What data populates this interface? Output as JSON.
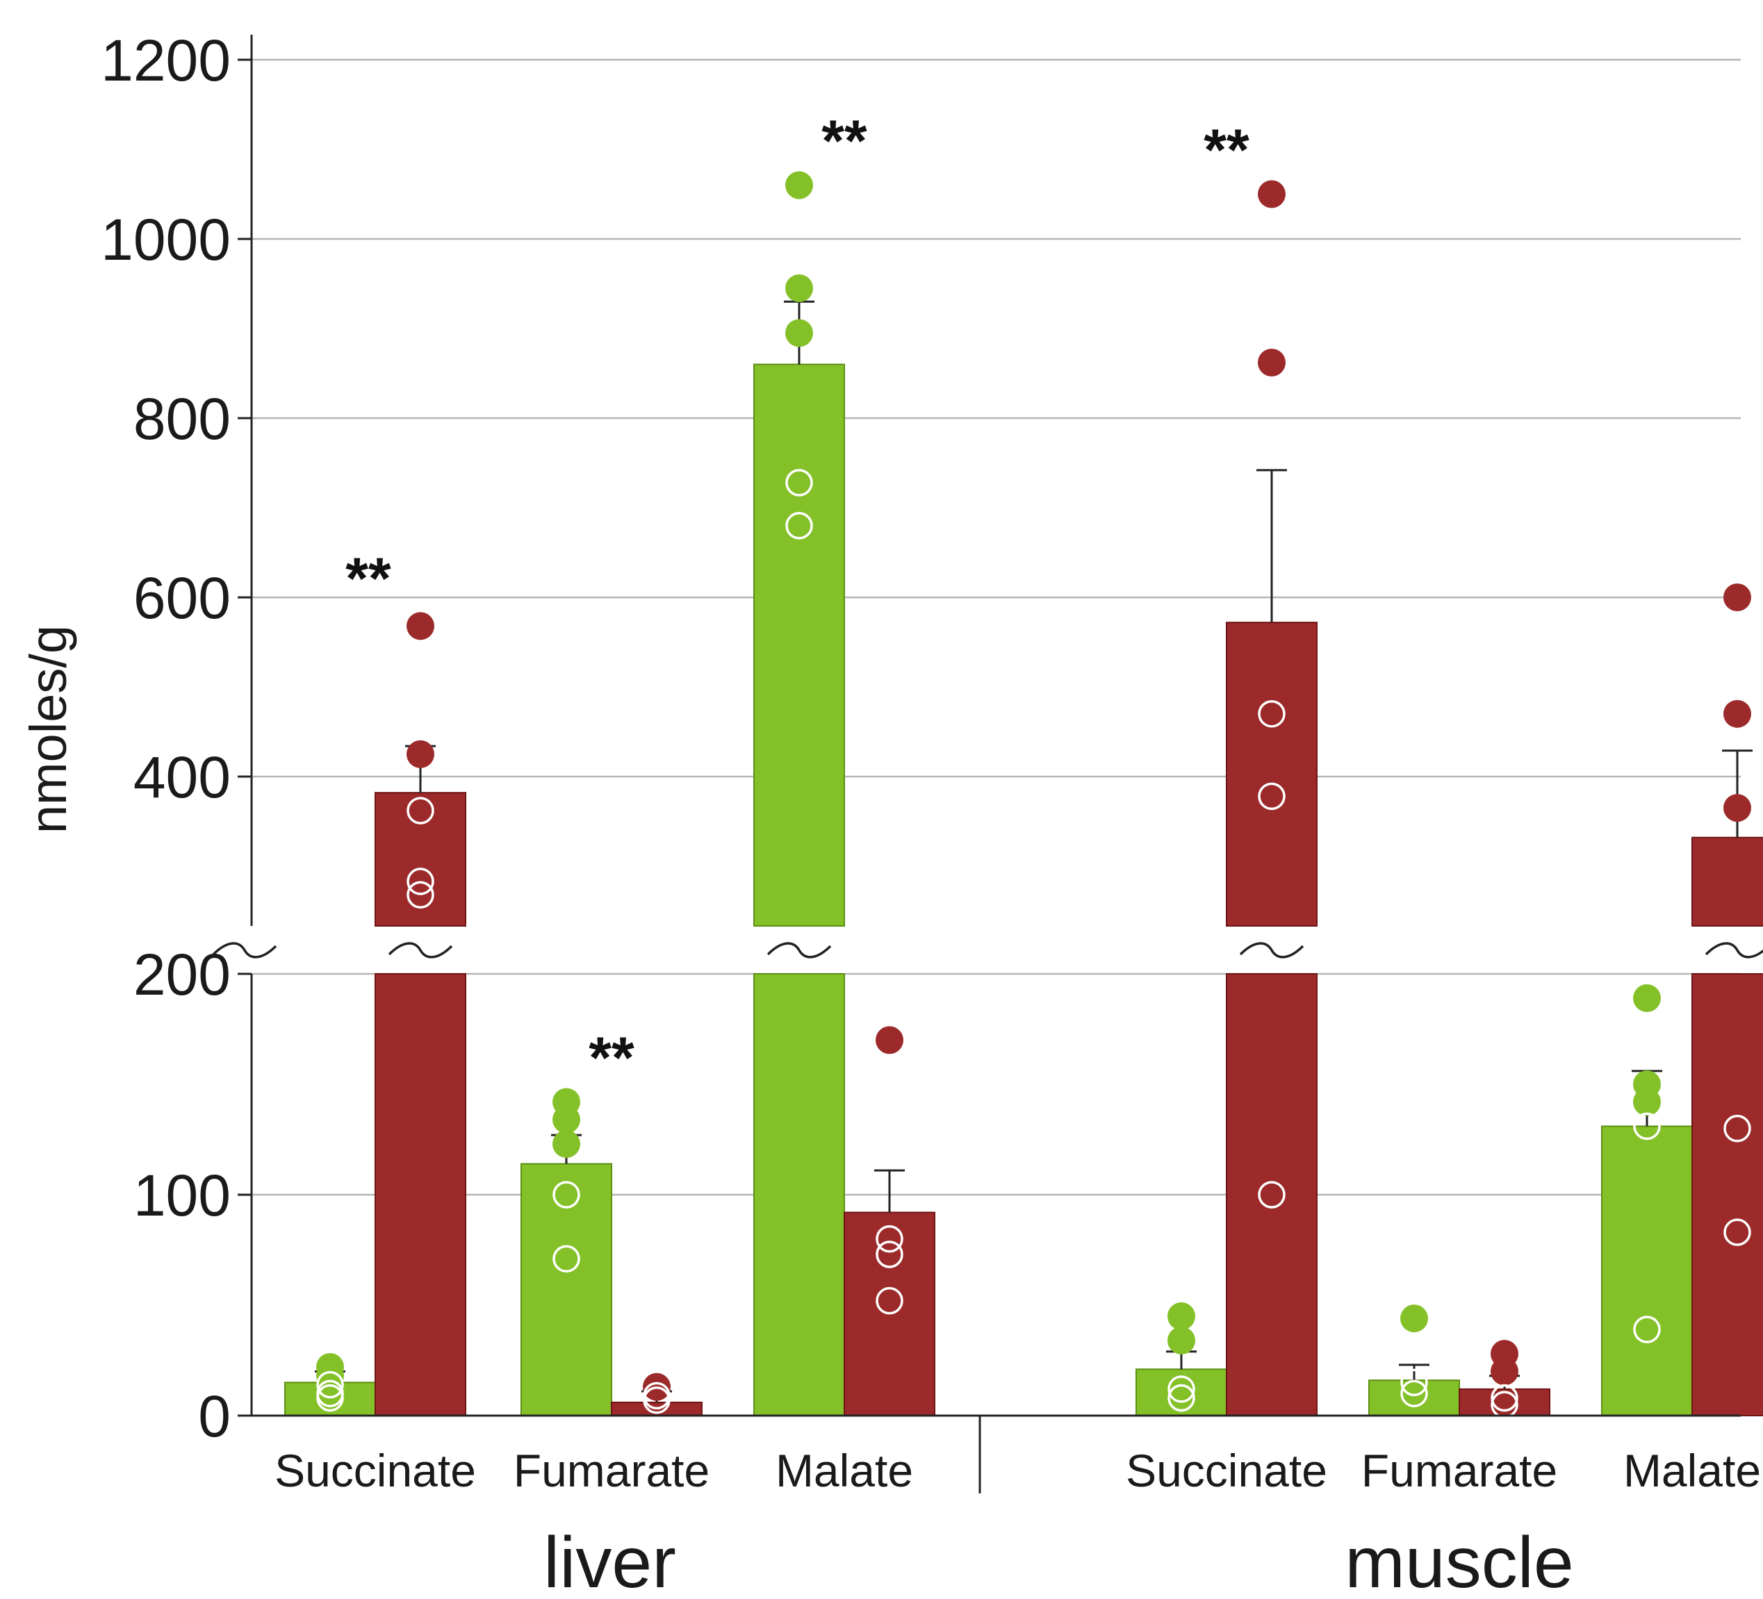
{
  "chart_data": {
    "type": "bar",
    "ylabel": "nmoles/g",
    "y_axis": {
      "broken": true,
      "lower_segment": {
        "range": [
          0,
          200
        ],
        "ticks": [
          0,
          100,
          200
        ]
      },
      "upper_segment": {
        "range": [
          250,
          1200
        ],
        "ticks": [
          400,
          600,
          800,
          1000,
          1200
        ]
      },
      "grid": true
    },
    "groups": [
      {
        "label": "liver",
        "categories": [
          "Succinate",
          "Fumarate",
          "Malate"
        ]
      },
      {
        "label": "muscle",
        "categories": [
          "Succinate",
          "Fumarate",
          "Malate"
        ]
      }
    ],
    "series": [
      {
        "color": "#84c128",
        "values": [
          15,
          114,
          860,
          21,
          16,
          131
        ],
        "sem": [
          5,
          13,
          70,
          8,
          7,
          25
        ],
        "points": [
          [
            22,
            18,
            14,
            10,
            8
          ],
          [
            142,
            134,
            123,
            100,
            71
          ],
          [
            1060,
            945,
            895,
            728,
            680
          ],
          [
            45,
            34,
            12,
            8
          ],
          [
            44,
            15,
            10
          ],
          [
            189,
            150,
            142,
            131,
            39
          ]
        ],
        "hollow_points": [
          [
            0,
            0,
            1,
            1,
            1
          ],
          [
            0,
            0,
            0,
            1,
            1
          ],
          [
            0,
            0,
            0,
            1,
            1
          ],
          [
            0,
            0,
            1,
            1
          ],
          [
            0,
            1,
            1
          ],
          [
            0,
            0,
            0,
            1,
            1
          ]
        ]
      },
      {
        "color": "#9c2a2a",
        "values": [
          382,
          6,
          92,
          572,
          12,
          332
        ],
        "sem": [
          52,
          5,
          19,
          170,
          6,
          97
        ],
        "points": [
          [
            568,
            425,
            362,
            283,
            268
          ],
          [
            13,
            9,
            7
          ],
          [
            170,
            80,
            73,
            52
          ],
          [
            1050,
            862,
            470,
            378,
            100
          ],
          [
            28,
            20,
            8,
            5
          ],
          [
            600,
            470,
            365,
            130,
            83
          ]
        ],
        "hollow_points": [
          [
            0,
            0,
            1,
            1,
            1
          ],
          [
            0,
            1,
            1
          ],
          [
            0,
            1,
            1,
            1
          ],
          [
            0,
            0,
            1,
            1,
            1
          ],
          [
            0,
            0,
            1,
            1
          ],
          [
            0,
            0,
            0,
            1,
            1
          ]
        ]
      }
    ],
    "annotations": [
      {
        "text": "**",
        "group": 0,
        "category": 0
      },
      {
        "text": "**",
        "group": 0,
        "category": 1
      },
      {
        "text": "**",
        "group": 0,
        "category": 2
      },
      {
        "text": "**",
        "group": 1,
        "category": 0
      }
    ]
  }
}
